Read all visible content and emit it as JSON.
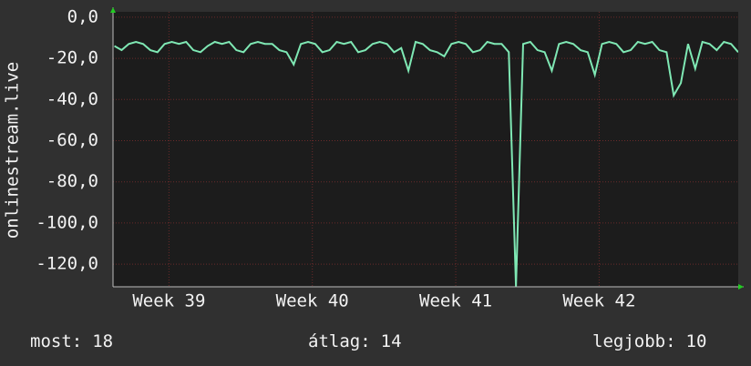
{
  "chart_data": {
    "type": "line",
    "y_label": "onlinestream.live",
    "xlim": [
      38.61,
      42.97
    ],
    "xticks": [
      {
        "value": 39,
        "label": "Week 39"
      },
      {
        "value": 40,
        "label": "Week 40"
      },
      {
        "value": 41,
        "label": "Week 41"
      },
      {
        "value": 42,
        "label": "Week 42"
      }
    ],
    "ylim": [
      -131,
      2.6
    ],
    "yticks": [
      {
        "value": 0,
        "label": "0,0"
      },
      {
        "value": -20,
        "label": "-20,0"
      },
      {
        "value": -40,
        "label": "-40,0"
      },
      {
        "value": -60,
        "label": "-60,0"
      },
      {
        "value": -80,
        "label": "-80,0"
      },
      {
        "value": -100,
        "label": "-100,0"
      },
      {
        "value": -120,
        "label": "-120,0"
      }
    ],
    "grid": true,
    "series": [
      {
        "color": "#7fe8b4",
        "x": [
          38.62,
          38.67,
          38.72,
          38.77,
          38.82,
          38.87,
          38.92,
          38.97,
          39.02,
          39.07,
          39.12,
          39.17,
          39.22,
          39.27,
          39.32,
          39.37,
          39.42,
          39.47,
          39.52,
          39.57,
          39.62,
          39.67,
          39.72,
          39.77,
          39.82,
          39.87,
          39.92,
          39.97,
          40.02,
          40.07,
          40.12,
          40.17,
          40.22,
          40.27,
          40.32,
          40.37,
          40.42,
          40.47,
          40.52,
          40.57,
          40.62,
          40.67,
          40.72,
          40.77,
          40.82,
          40.87,
          40.92,
          40.97,
          41.02,
          41.07,
          41.12,
          41.17,
          41.22,
          41.27,
          41.32,
          41.37,
          41.42,
          41.47,
          41.52,
          41.57,
          41.62,
          41.67,
          41.72,
          41.77,
          41.82,
          41.87,
          41.92,
          41.97,
          42.02,
          42.07,
          42.12,
          42.17,
          42.22,
          42.27,
          42.32,
          42.37,
          42.42,
          42.47,
          42.52,
          42.57,
          42.62,
          42.67,
          42.72,
          42.77,
          42.82,
          42.87,
          42.92,
          42.97
        ],
        "values": [
          -14,
          -16,
          -13,
          -12,
          -13,
          -16,
          -17,
          -13,
          -12,
          -13,
          -12,
          -16,
          -17,
          -14,
          -12,
          -13,
          -12,
          -16,
          -17,
          -13,
          -12,
          -13,
          -13,
          -16,
          -17,
          -23,
          -13,
          -12,
          -13,
          -17,
          -16,
          -12,
          -13,
          -12,
          -17,
          -16,
          -13,
          -12,
          -13,
          -17,
          -15,
          -26,
          -12,
          -13,
          -16,
          -17,
          -19,
          -13,
          -12,
          -13,
          -17,
          -16,
          -12,
          -13,
          -13,
          -17,
          -131,
          -13,
          -12,
          -16,
          -17,
          -26,
          -13,
          -12,
          -13,
          -16,
          -17,
          -28,
          -13,
          -12,
          -13,
          -17,
          -16,
          -12,
          -13,
          -12,
          -16,
          -17,
          -38,
          -32,
          -13,
          -25,
          -12,
          -13,
          -16,
          -12,
          -13,
          -17
        ]
      }
    ],
    "stats": [
      {
        "label": "most:",
        "value": 18
      },
      {
        "label": "átlag:",
        "value": 14
      },
      {
        "label": "legjobb:",
        "value": 10
      }
    ]
  }
}
